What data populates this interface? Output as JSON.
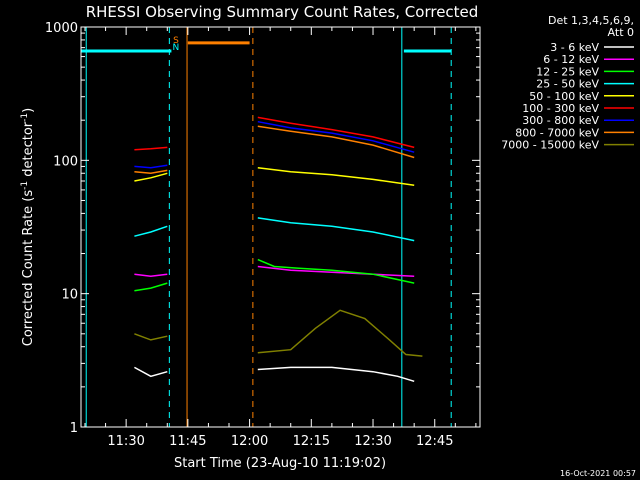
{
  "chart_data": {
    "type": "line",
    "title": "RHESSI Observing Summary Count Rates, Corrected",
    "xlabel": "Start Time (23-Aug-10 11:19:02)",
    "ylabel_prefix": "Corrected Count Rate (s",
    "ylabel_exp1": "-1",
    "ylabel_mid": " detector",
    "ylabel_exp2": "-1",
    "ylabel_suffix": ")",
    "x_ticks": [
      "11:30",
      "11:45",
      "12:00",
      "12:15",
      "12:30",
      "12:45"
    ],
    "x_tick_minutes": [
      30,
      45,
      60,
      75,
      90,
      105
    ],
    "x_range_minutes": [
      19.03,
      116
    ],
    "y_scale": "log",
    "ylim": [
      1,
      1000
    ],
    "y_ticks": [
      "1",
      "10",
      "100",
      "1000"
    ],
    "y_tick_values": [
      1,
      10,
      100,
      1000
    ],
    "legend_header": [
      "Det 1,3,4,5,6,9,",
      "Att 0"
    ],
    "legend_position": "right",
    "series": [
      {
        "name": "3 - 6 keV",
        "color": "#ffffff",
        "data": [
          [
            32,
            2.8
          ],
          [
            36,
            2.4
          ],
          [
            40,
            2.6
          ],
          [
            60,
            null
          ],
          [
            62,
            2.7
          ],
          [
            70,
            2.8
          ],
          [
            80,
            2.8
          ],
          [
            90,
            2.6
          ],
          [
            96,
            2.4
          ],
          [
            100,
            2.2
          ]
        ]
      },
      {
        "name": "6 - 12 keV",
        "color": "#ff00ff",
        "data": [
          [
            32,
            14
          ],
          [
            36,
            13.5
          ],
          [
            40,
            14
          ],
          [
            60,
            null
          ],
          [
            62,
            16
          ],
          [
            70,
            15
          ],
          [
            80,
            14.5
          ],
          [
            90,
            14
          ],
          [
            100,
            13.5
          ]
        ]
      },
      {
        "name": "12 - 25 keV",
        "color": "#00ff00",
        "data": [
          [
            32,
            10.5
          ],
          [
            36,
            11
          ],
          [
            40,
            12
          ],
          [
            60,
            null
          ],
          [
            62,
            18
          ],
          [
            66,
            16
          ],
          [
            72,
            15.5
          ],
          [
            80,
            15
          ],
          [
            90,
            14
          ],
          [
            100,
            12
          ]
        ]
      },
      {
        "name": "25 - 50 keV",
        "color": "#00ffff",
        "data": [
          [
            32,
            27
          ],
          [
            36,
            29
          ],
          [
            40,
            32
          ],
          [
            60,
            null
          ],
          [
            62,
            37
          ],
          [
            70,
            34
          ],
          [
            80,
            32
          ],
          [
            90,
            29
          ],
          [
            100,
            25
          ]
        ]
      },
      {
        "name": "50 - 100 keV",
        "color": "#ffff00",
        "data": [
          [
            32,
            70
          ],
          [
            36,
            74
          ],
          [
            40,
            80
          ],
          [
            60,
            null
          ],
          [
            62,
            88
          ],
          [
            70,
            82
          ],
          [
            80,
            78
          ],
          [
            90,
            72
          ],
          [
            100,
            65
          ]
        ]
      },
      {
        "name": "100 - 300 keV",
        "color": "#ff0000",
        "data": [
          [
            32,
            120
          ],
          [
            36,
            122
          ],
          [
            40,
            125
          ],
          [
            60,
            null
          ],
          [
            62,
            210
          ],
          [
            70,
            190
          ],
          [
            80,
            170
          ],
          [
            90,
            150
          ],
          [
            100,
            125
          ]
        ]
      },
      {
        "name": "300 - 800 keV",
        "color": "#0000ff",
        "data": [
          [
            32,
            90
          ],
          [
            36,
            88
          ],
          [
            40,
            92
          ],
          [
            60,
            null
          ],
          [
            62,
            195
          ],
          [
            70,
            175
          ],
          [
            80,
            160
          ],
          [
            90,
            140
          ],
          [
            100,
            115
          ]
        ]
      },
      {
        "name": "800 - 7000 keV",
        "color": "#ff8000",
        "data": [
          [
            32,
            82
          ],
          [
            36,
            80
          ],
          [
            40,
            84
          ],
          [
            60,
            null
          ],
          [
            62,
            180
          ],
          [
            70,
            165
          ],
          [
            80,
            150
          ],
          [
            90,
            130
          ],
          [
            100,
            105
          ]
        ]
      },
      {
        "name": "7000 - 15000 keV",
        "color": "#808000",
        "data": [
          [
            32,
            5
          ],
          [
            36,
            4.5
          ],
          [
            40,
            4.8
          ],
          [
            60,
            null
          ],
          [
            62,
            3.6
          ],
          [
            70,
            3.8
          ],
          [
            76,
            5.5
          ],
          [
            82,
            7.5
          ],
          [
            88,
            6.5
          ],
          [
            94,
            4.5
          ],
          [
            98,
            3.5
          ],
          [
            102,
            3.4
          ]
        ]
      }
    ],
    "eclipse_segments": [
      {
        "color": "#00ffff",
        "from": 19.03,
        "to": 41,
        "value": 660
      },
      {
        "color": "#00ffff",
        "from": 97.5,
        "to": 109,
        "value": 660
      },
      {
        "color": "#ff8000",
        "from": 45,
        "to": 60,
        "value": 760
      }
    ],
    "region_markers": [
      {
        "color": "#00ffff",
        "style": "dashed",
        "minute": 40.5
      },
      {
        "color": "#00ffff",
        "style": "dashed",
        "minute": 109
      },
      {
        "color": "#ff8000",
        "style": "dashed",
        "minute": 60.8
      },
      {
        "color": "#00ffff",
        "style": "solid",
        "minute": 20.3
      },
      {
        "color": "#ff8000",
        "style": "solid",
        "minute": 44.8
      },
      {
        "color": "#00ffff",
        "style": "solid",
        "minute": 97
      }
    ],
    "saa_labels": [
      {
        "text": "S",
        "color": "#ff8000"
      },
      {
        "text": "N",
        "color": "#00ffff"
      }
    ],
    "timestamp": "16-Oct-2021 00:57"
  }
}
